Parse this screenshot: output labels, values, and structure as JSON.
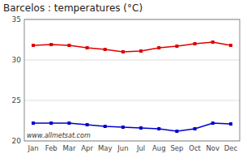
{
  "chart_data": {
    "type": "line",
    "title": "Barcelos : temperatures (°C)",
    "categories": [
      "Jan",
      "Feb",
      "Mar",
      "Apr",
      "May",
      "Jun",
      "Jul",
      "Aug",
      "Sep",
      "Oct",
      "Nov",
      "Dec"
    ],
    "series": [
      {
        "color": "#dd0000",
        "marker": "square",
        "values": [
          31.8,
          31.9,
          31.8,
          31.5,
          31.3,
          31.0,
          31.1,
          31.5,
          31.7,
          32.0,
          32.2,
          31.8
        ]
      },
      {
        "color": "#0000cc",
        "marker": "square",
        "values": [
          22.2,
          22.2,
          22.2,
          22.0,
          21.8,
          21.7,
          21.6,
          21.5,
          21.2,
          21.5,
          22.2,
          22.1
        ]
      }
    ],
    "ylim": [
      20,
      35
    ],
    "yticks": [
      20,
      25,
      30,
      35
    ],
    "grid": true,
    "annotations": [
      "www.allmetsat.com"
    ]
  }
}
